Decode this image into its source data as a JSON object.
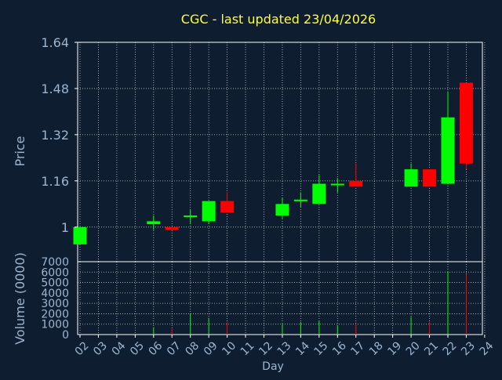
{
  "chart_data": {
    "type": "candlestick",
    "title": "CGC - last updated 23/04/2026",
    "xlabel": "Day",
    "ylabel_price": "Price",
    "ylabel_volume": "Volume (0000)",
    "x_ticks": [
      "02",
      "03",
      "04",
      "05",
      "06",
      "07",
      "08",
      "09",
      "10",
      "11",
      "12",
      "13",
      "14",
      "15",
      "16",
      "17",
      "18",
      "19",
      "20",
      "21",
      "22",
      "23",
      "24"
    ],
    "price_ylim": [
      0.88,
      1.64
    ],
    "price_ticks": [
      "1",
      "1.16",
      "1.32",
      "1.48",
      "1.64"
    ],
    "volume_ylim": [
      0,
      7000
    ],
    "volume_ticks": [
      "0",
      "1000",
      "2000",
      "3000",
      "4000",
      "5000",
      "6000",
      "7000"
    ],
    "candles": [
      {
        "day": "02",
        "open": 0.94,
        "close": 1.0,
        "high": 1.0,
        "low": 0.94,
        "volume": 0
      },
      {
        "day": "06",
        "open": 1.01,
        "close": 1.02,
        "high": 1.04,
        "low": 0.99,
        "volume": 700
      },
      {
        "day": "07",
        "open": 1.0,
        "close": 0.99,
        "high": 1.0,
        "low": 0.99,
        "volume": 500
      },
      {
        "day": "08",
        "open": 1.035,
        "close": 1.04,
        "high": 1.06,
        "low": 1.01,
        "volume": 2000
      },
      {
        "day": "09",
        "open": 1.02,
        "close": 1.09,
        "high": 1.09,
        "low": 1.01,
        "volume": 1600
      },
      {
        "day": "10",
        "open": 1.09,
        "close": 1.05,
        "high": 1.12,
        "low": 1.05,
        "volume": 1200
      },
      {
        "day": "13",
        "open": 1.04,
        "close": 1.08,
        "high": 1.1,
        "low": 1.03,
        "volume": 1000
      },
      {
        "day": "14",
        "open": 1.09,
        "close": 1.095,
        "high": 1.12,
        "low": 1.07,
        "volume": 1200
      },
      {
        "day": "15",
        "open": 1.08,
        "close": 1.15,
        "high": 1.18,
        "low": 1.08,
        "volume": 1300
      },
      {
        "day": "16",
        "open": 1.145,
        "close": 1.15,
        "high": 1.17,
        "low": 1.12,
        "volume": 900
      },
      {
        "day": "17",
        "open": 1.16,
        "close": 1.14,
        "high": 1.22,
        "low": 1.14,
        "volume": 1000
      },
      {
        "day": "20",
        "open": 1.14,
        "close": 1.2,
        "high": 1.22,
        "low": 1.14,
        "volume": 1700
      },
      {
        "day": "21",
        "open": 1.2,
        "close": 1.14,
        "high": 1.2,
        "low": 1.14,
        "volume": 1200
      },
      {
        "day": "22",
        "open": 1.15,
        "close": 1.38,
        "high": 1.47,
        "low": 1.15,
        "volume": 6100
      },
      {
        "day": "23",
        "open": 1.5,
        "close": 1.22,
        "high": 1.5,
        "low": 1.2,
        "volume": 5800
      }
    ],
    "colors": {
      "background": "#0e1e30",
      "text": "#9fb4cc",
      "title": "#ffff33",
      "up": "#00ff00",
      "down": "#ff0000",
      "grid": "#ffffff"
    }
  }
}
